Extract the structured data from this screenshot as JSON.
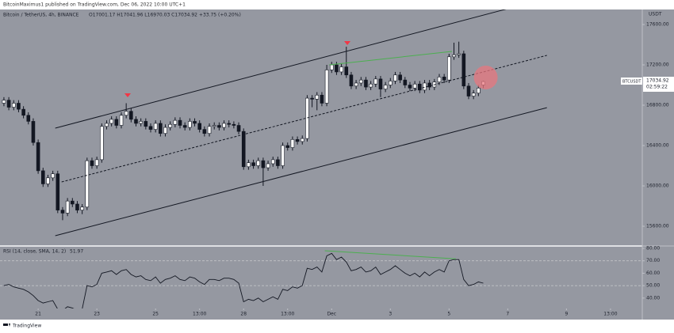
{
  "header": {
    "publisher": "BitcoinMaximus1 published on TradingView.com, Dec 06, 2022 10:00 UTC+1",
    "logo": "TradingView"
  },
  "chart_data": [
    {
      "type": "candlestick",
      "title": "Bitcoin / TetherUS, 4h, BINANCE",
      "ohlc_text": "O17001.17 H17041.96 L16970.03 C17034.92 +33.75 (+0.20%)",
      "symbol": "BTCUSDT",
      "countdown": "02:59:22",
      "axis_unit": "USDT",
      "background": "#9598a1",
      "up_color": "#ffffff",
      "down_color": "#131722",
      "wick_color": "#131722",
      "open": [
        16820,
        16850,
        16780,
        16820,
        16760,
        16700,
        16640,
        16430,
        16150,
        16020,
        16080,
        16120,
        15760,
        15730,
        15850,
        15820,
        15760,
        15790,
        16250,
        16200,
        16260,
        16590,
        16620,
        16660,
        16600,
        16700,
        16740,
        16660,
        16620,
        16640,
        16590,
        16560,
        16620,
        16520,
        16580,
        16610,
        16650,
        16600,
        16580,
        16640,
        16620,
        16560,
        16520,
        16590,
        16600,
        16580,
        16620,
        16610,
        16600,
        16540,
        16190,
        16230,
        16200,
        16250,
        16180,
        16220,
        16260,
        16200,
        16400,
        16380,
        16460,
        16440,
        16470,
        16870,
        16860,
        16900,
        16820,
        17150,
        17200,
        17130,
        17180,
        17100,
        16990,
        17020,
        17050,
        16980,
        17010,
        17060,
        16960,
        17000,
        17040,
        17100,
        17050,
        17000,
        16970,
        17010,
        16950,
        17020,
        16980,
        17030,
        17080,
        17050,
        17280,
        17300,
        17310,
        16990,
        16890,
        16920,
        17001.17
      ],
      "high": [
        16880,
        16880,
        16850,
        16850,
        16790,
        16730,
        16670,
        16460,
        16180,
        16110,
        16150,
        16150,
        15790,
        15880,
        15880,
        15850,
        15820,
        16280,
        16280,
        16290,
        16620,
        16650,
        16690,
        16690,
        16730,
        16820,
        16770,
        16690,
        16670,
        16670,
        16620,
        16650,
        16650,
        16610,
        16640,
        16680,
        16680,
        16630,
        16670,
        16670,
        16650,
        16590,
        16620,
        16630,
        16630,
        16650,
        16650,
        16640,
        16630,
        16570,
        16260,
        16260,
        16280,
        16280,
        16250,
        16290,
        16290,
        16430,
        16430,
        16490,
        16490,
        16500,
        16900,
        16900,
        16930,
        16930,
        17200,
        17230,
        17230,
        17210,
        17380,
        17130,
        17050,
        17080,
        17080,
        17040,
        17090,
        17090,
        17030,
        17070,
        17130,
        17130,
        17080,
        17030,
        17040,
        17040,
        17050,
        17050,
        17060,
        17110,
        17110,
        17310,
        17420,
        17430,
        17340,
        17020,
        16950,
        17000,
        17041.96
      ],
      "low": [
        16790,
        16750,
        16750,
        16730,
        16670,
        16610,
        16400,
        16120,
        15990,
        15990,
        16050,
        15730,
        15660,
        15700,
        15790,
        15730,
        15720,
        15760,
        16170,
        16170,
        16230,
        16560,
        16590,
        16570,
        16570,
        16670,
        16630,
        16590,
        16590,
        16560,
        16530,
        16530,
        16490,
        16490,
        16550,
        16580,
        16570,
        16550,
        16550,
        16590,
        16530,
        16490,
        16490,
        16560,
        16550,
        16550,
        16580,
        16570,
        16510,
        16160,
        16160,
        16170,
        16170,
        16000,
        16150,
        16190,
        16170,
        16170,
        16350,
        16350,
        16410,
        16410,
        16440,
        16780,
        16750,
        16790,
        16790,
        17120,
        17100,
        17100,
        17070,
        16960,
        16960,
        16990,
        16950,
        16950,
        16980,
        16880,
        16930,
        16970,
        17010,
        17020,
        16970,
        16940,
        16940,
        16920,
        16920,
        16950,
        16950,
        17000,
        17020,
        17020,
        17250,
        17270,
        16960,
        16860,
        16860,
        16890,
        16970.03
      ],
      "close": [
        16850,
        16780,
        16820,
        16760,
        16700,
        16640,
        16430,
        16150,
        16020,
        16080,
        16120,
        15760,
        15730,
        15850,
        15820,
        15760,
        15790,
        16250,
        16200,
        16260,
        16590,
        16620,
        16660,
        16600,
        16700,
        16740,
        16660,
        16620,
        16640,
        16590,
        16560,
        16620,
        16520,
        16580,
        16610,
        16650,
        16600,
        16580,
        16640,
        16620,
        16560,
        16520,
        16590,
        16600,
        16580,
        16620,
        16610,
        16600,
        16540,
        16190,
        16230,
        16200,
        16250,
        16180,
        16220,
        16260,
        16200,
        16400,
        16380,
        16460,
        16440,
        16470,
        16870,
        16860,
        16900,
        16820,
        17150,
        17200,
        17130,
        17180,
        17100,
        16990,
        17020,
        17050,
        16980,
        17010,
        17060,
        16960,
        17000,
        17040,
        17100,
        17050,
        17000,
        16970,
        17010,
        16950,
        17020,
        16980,
        17030,
        17080,
        17050,
        17280,
        17300,
        17310,
        16990,
        16890,
        16920,
        16970,
        17034.92
      ],
      "xlim": [
        -0.8,
        130.5
      ],
      "ylim": [
        15412,
        17749
      ],
      "yticks": [
        {
          "value": 15600,
          "label": "15600.00"
        },
        {
          "value": 16000,
          "label": "16000.00"
        },
        {
          "value": 16400,
          "label": "16400.00"
        },
        {
          "value": 16800,
          "label": "16800.00"
        },
        {
          "value": 17200,
          "label": "17200.00"
        },
        {
          "value": 17600,
          "label": "17600.00"
        }
      ],
      "lines": [
        {
          "x": [
            10.5,
            103
          ],
          "y": [
            16573,
            17757
          ],
          "color": "#131722",
          "dashed": false
        },
        {
          "x": [
            11.8,
            111
          ],
          "y": [
            16039,
            17294
          ],
          "color": "#131722",
          "dashed": true
        },
        {
          "x": [
            10.5,
            111
          ],
          "y": [
            15506,
            16776
          ],
          "color": "#131722",
          "dashed": false
        },
        {
          "x": [
            66.5,
            91.6
          ],
          "y": [
            17200,
            17333
          ],
          "color": "#4caf50",
          "dashed": false
        }
      ],
      "markers": [
        {
          "x": 25.3,
          "y": 16886,
          "color": "#f23645"
        },
        {
          "x": 70.2,
          "y": 17404,
          "color": "#f23645"
        }
      ],
      "highlight": {
        "x": 98.5,
        "y": 17075,
        "color": "#e8777f"
      }
    },
    {
      "type": "line",
      "title": "RSI (14, close, SMA, 14, 2)",
      "color": "#131722",
      "background": "#9598a1",
      "values": [
        50,
        51,
        49,
        48,
        47,
        45,
        42,
        38,
        36,
        37,
        38,
        31,
        30,
        33,
        32,
        30,
        31,
        50,
        49,
        51,
        60,
        61,
        62,
        59,
        62,
        63,
        59,
        57,
        58,
        55,
        54,
        57,
        52,
        55,
        56,
        58,
        55,
        54,
        57,
        56,
        53,
        51,
        55,
        55,
        54,
        56,
        56,
        55,
        52,
        37,
        39,
        38,
        40,
        37,
        39,
        41,
        39,
        47,
        46,
        49,
        48,
        50,
        64,
        63,
        65,
        61,
        74,
        76,
        71,
        73,
        69,
        62,
        63,
        65,
        61,
        62,
        65,
        59,
        61,
        63,
        66,
        63,
        60,
        58,
        60,
        57,
        61,
        58,
        61,
        63,
        61,
        70,
        71,
        71,
        55,
        50,
        51,
        53,
        51.97
      ],
      "xlim": [
        -0.8,
        130.5
      ],
      "ylim": [
        31.6,
        81.3
      ],
      "yticks": [
        {
          "value": 40,
          "label": "40.00"
        },
        {
          "value": 50,
          "label": "50.00"
        },
        {
          "value": 60,
          "label": "60.00"
        },
        {
          "value": 70,
          "label": "70.00"
        },
        {
          "value": 80,
          "label": "80.00"
        }
      ],
      "levels": [
        70,
        50
      ],
      "lines": [
        {
          "x": [
            65.6,
            92.4
          ],
          "y": [
            78.1,
            71.6
          ],
          "color": "#4caf50",
          "dashed": false
        }
      ],
      "xticks": [
        {
          "value": 7,
          "label": "21"
        },
        {
          "value": 19,
          "label": "23"
        },
        {
          "value": 31,
          "label": "25"
        },
        {
          "value": 40,
          "label": "13:00"
        },
        {
          "value": 49,
          "label": "28"
        },
        {
          "value": 58,
          "label": "13:00"
        },
        {
          "value": 67,
          "label": "Dec"
        },
        {
          "value": 79,
          "label": "3"
        },
        {
          "value": 91,
          "label": "5"
        },
        {
          "value": 103,
          "label": "7"
        },
        {
          "value": 115,
          "label": "9"
        },
        {
          "value": 124,
          "label": "13:00"
        }
      ]
    }
  ]
}
